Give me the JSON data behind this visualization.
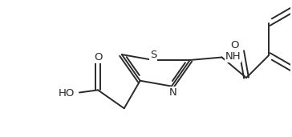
{
  "background_color": "#ffffff",
  "bond_color": "#2a2a2a",
  "text_color": "#2a2a2a",
  "line_width": 1.4,
  "font_size": 9.5,
  "figsize": [
    3.64,
    1.71
  ],
  "dpi": 100,
  "xlim": [
    0,
    3.64
  ],
  "ylim": [
    0,
    1.71
  ]
}
